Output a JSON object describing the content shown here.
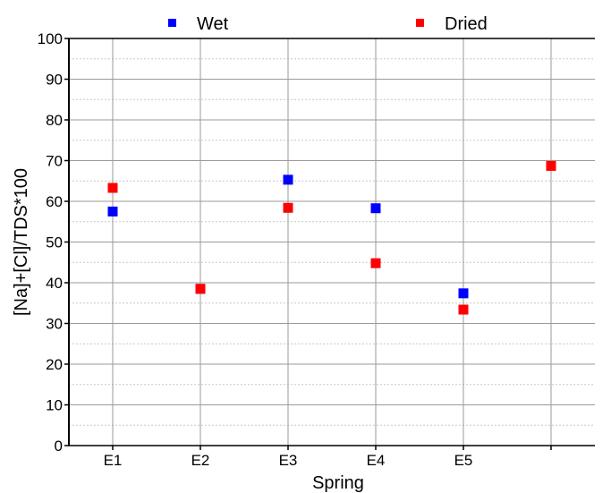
{
  "chart_data": {
    "type": "scatter",
    "title": "",
    "xlabel": "Spring",
    "ylabel": "[Na]+[Cl]/TDS*100",
    "categories": [
      "E1",
      "E2",
      "E3",
      "E4",
      "E5"
    ],
    "x_positions": [
      1,
      2,
      3,
      4,
      5
    ],
    "xlim": [
      0.5,
      6.5
    ],
    "ylim": [
      0,
      100
    ],
    "yticks": [
      0,
      10,
      20,
      30,
      40,
      50,
      60,
      70,
      80,
      90,
      100
    ],
    "grid": true,
    "legend_position": "top",
    "series": [
      {
        "name": "Wet",
        "color": "#0000ff",
        "marker": "square",
        "points": [
          {
            "x": 1,
            "y": 57.5
          },
          {
            "x": 2,
            "y": 38.5
          },
          {
            "x": 3,
            "y": 65.3
          },
          {
            "x": 4,
            "y": 58.3
          },
          {
            "x": 5,
            "y": 37.4
          }
        ]
      },
      {
        "name": "Dried",
        "color": "#ff0000",
        "marker": "square",
        "points": [
          {
            "x": 1,
            "y": 63.3
          },
          {
            "x": 2,
            "y": 38.5
          },
          {
            "x": 3,
            "y": 58.4
          },
          {
            "x": 4,
            "y": 44.8
          },
          {
            "x": 5,
            "y": 33.4
          },
          {
            "x": 6,
            "y": 68.7
          }
        ]
      }
    ]
  }
}
